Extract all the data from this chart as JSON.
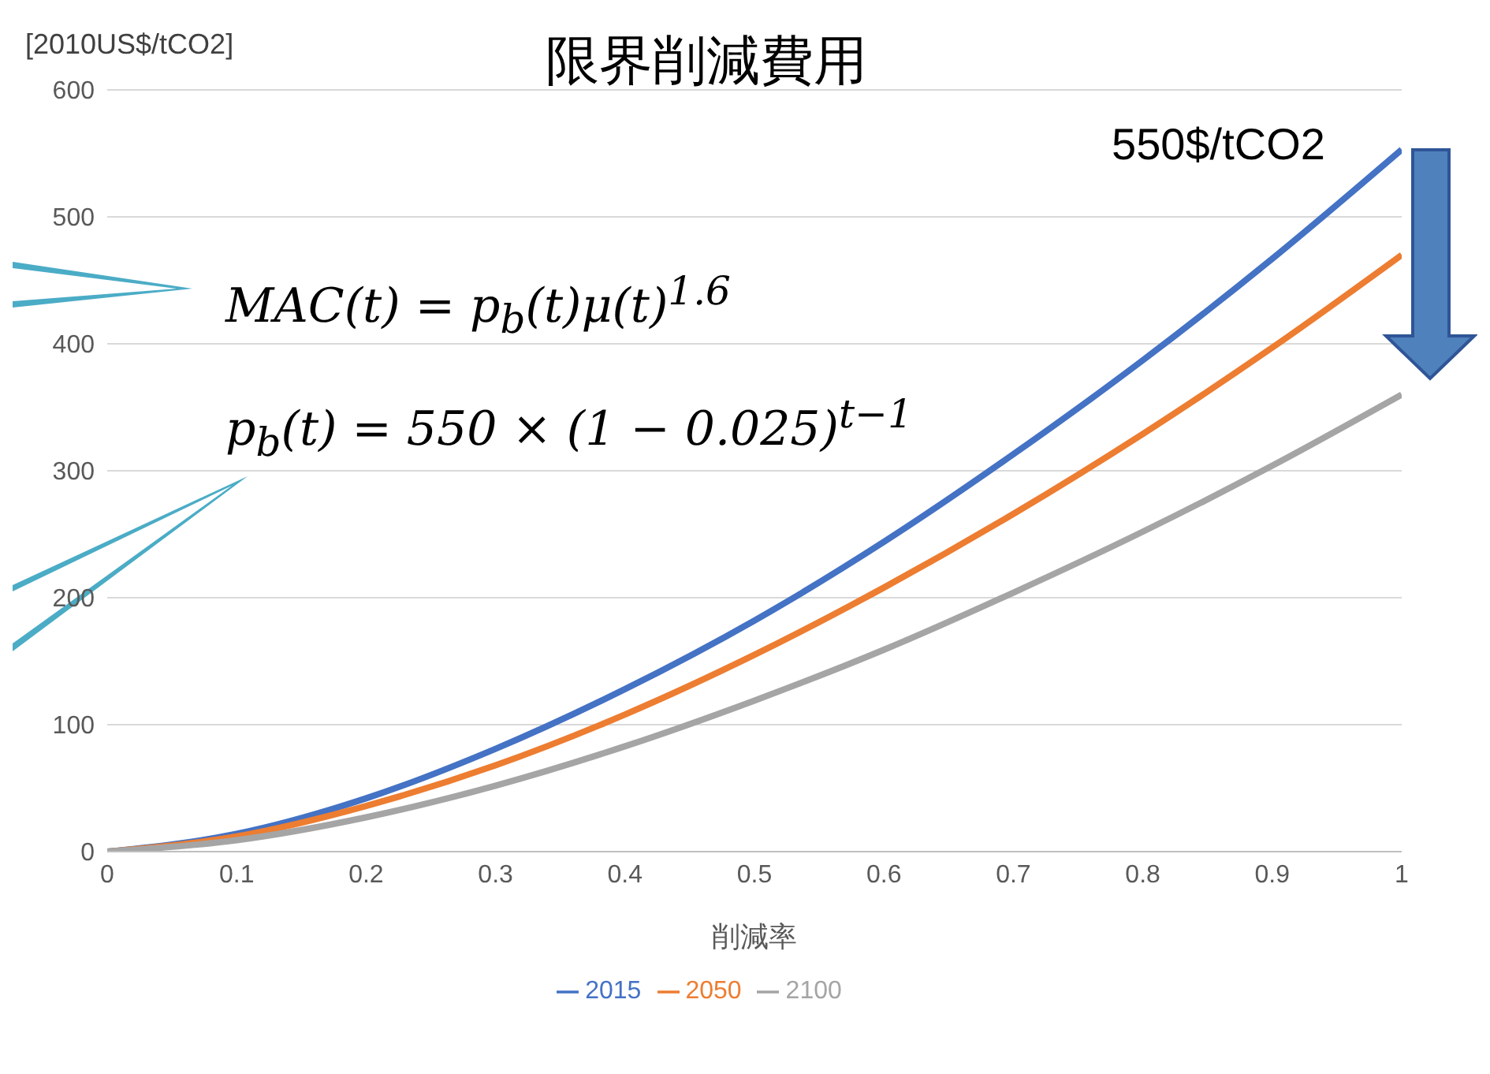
{
  "chart_data": {
    "type": "line",
    "title": "限界削減費用",
    "ylabel": "[2010US$/tCO2]",
    "xlabel": "削減率",
    "x": [
      0,
      0.1,
      0.2,
      0.3,
      0.4,
      0.5,
      0.6,
      0.7,
      0.8,
      0.9,
      1
    ],
    "series": [
      {
        "name": "2015",
        "color": "#4472c4",
        "values": [
          0,
          14,
          42,
          81,
          128,
          182,
          244,
          313,
          387,
          467,
          553
        ]
      },
      {
        "name": "2050",
        "color": "#ed7d31",
        "values": [
          0,
          12,
          36,
          68,
          108,
          155,
          208,
          266,
          329,
          397,
          470
        ]
      },
      {
        "name": "2100",
        "color": "#a5a5a5",
        "values": [
          0,
          9,
          27,
          52,
          83,
          119,
          159,
          204,
          252,
          304,
          360
        ]
      }
    ],
    "xlim": [
      0,
      1
    ],
    "xticks": [
      0,
      0.1,
      0.2,
      0.3,
      0.4,
      0.5,
      0.6,
      0.7,
      0.8,
      0.9,
      1
    ],
    "ylim": [
      0,
      600
    ],
    "yticks": [
      0,
      100,
      200,
      300,
      400,
      500,
      600
    ],
    "grid": "y",
    "legend": "bottom",
    "marker": "none",
    "line_style": "solid",
    "annotations": [
      "550$/tCO2",
      "MAC(t) = p$_{b}$(t)μ(t)$^{1.6}$",
      "p$_{b}$(t) = 550 × (1 − 0.025)$^{t−1}$"
    ]
  }
}
